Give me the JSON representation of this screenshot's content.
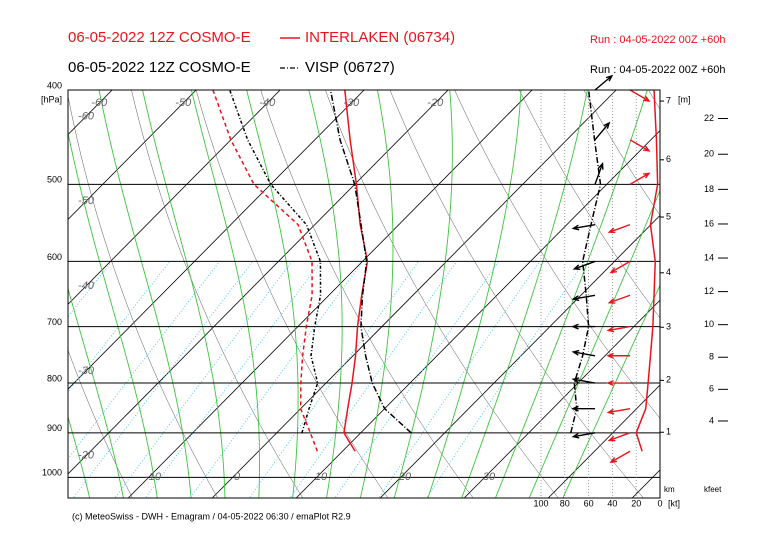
{
  "chart_data": {
    "type": "emagram",
    "footer": "(c) MeteoSwiss - DWH - Emagram / 04-05-2022  06:30 / emaPlot R2.9",
    "y_label": "[hPa]",
    "ylim": [
      1050,
      400
    ],
    "log_scale": true,
    "yticks": [
      400,
      500,
      600,
      700,
      800,
      900,
      1000
    ],
    "isotherm_labels_top": [
      -60,
      -50,
      -40,
      -30,
      -20
    ],
    "isotherm_labels_left": [
      -60,
      -50,
      -40,
      -30,
      -20
    ],
    "isotherm_labels_bottom": [
      -10,
      0,
      10,
      20,
      30
    ],
    "wind_label": "[kt]",
    "wind_xlim": [
      100,
      0
    ],
    "wind_ticks": [
      100,
      80,
      60,
      40,
      20,
      0
    ],
    "height_label": "[m]",
    "height_axis_label": "km",
    "height_ticks": [
      1,
      2,
      3,
      4,
      5,
      6,
      7
    ],
    "kfeet_label": "kfeet",
    "kfeet_ticks": [
      4,
      6,
      8,
      10,
      12,
      14,
      16,
      18,
      20,
      22
    ],
    "levels": [
      940,
      900,
      850,
      800,
      750,
      700,
      650,
      600,
      550,
      500,
      450,
      400
    ],
    "series": [
      {
        "model": "06-05-2022 12Z COSMO-E",
        "name": "INTERLAKEN (06734)",
        "run": "Run : 04-05-2022 00Z +60h",
        "color": "#e8141c",
        "line_style": "solid",
        "temperature": [
          11.5,
          8.0,
          5.6,
          3.1,
          0.3,
          -2.9,
          -6.1,
          -9.4,
          -14.6,
          -19.8,
          -25.8,
          -32.3
        ],
        "dewpoint": [
          7,
          4,
          0,
          -3,
          -6,
          -9,
          -12,
          -16,
          -22,
          -32,
          -40,
          -48
        ],
        "wind_speed": [
          15,
          20,
          12,
          10,
          8,
          6,
          5,
          4,
          8,
          2,
          3,
          5
        ],
        "wind_direction": [
          60,
          70,
          80,
          90,
          90,
          80,
          70,
          60,
          70,
          240,
          300,
          300
        ]
      },
      {
        "model": "06-05-2022 12Z COSMO-E",
        "name": "VISP (06727)",
        "run": "Run : 04-05-2022 00Z +60h",
        "color": "#000000",
        "line_style": "dashdot",
        "temperature": [
          null,
          16,
          10,
          5.5,
          1.5,
          -2.5,
          -6,
          -9.5,
          -14.5,
          -20,
          -27,
          -34
        ],
        "dewpoint": [
          null,
          3,
          1,
          -1,
          -5,
          -8,
          -11,
          -15,
          -21,
          -30,
          -38,
          -46
        ],
        "wind_speed": [
          null,
          75,
          70,
          72,
          65,
          60,
          62,
          65,
          58,
          50,
          55,
          60
        ],
        "wind_direction": [
          null,
          80,
          90,
          100,
          100,
          90,
          80,
          70,
          80,
          200,
          220,
          230
        ]
      }
    ]
  }
}
